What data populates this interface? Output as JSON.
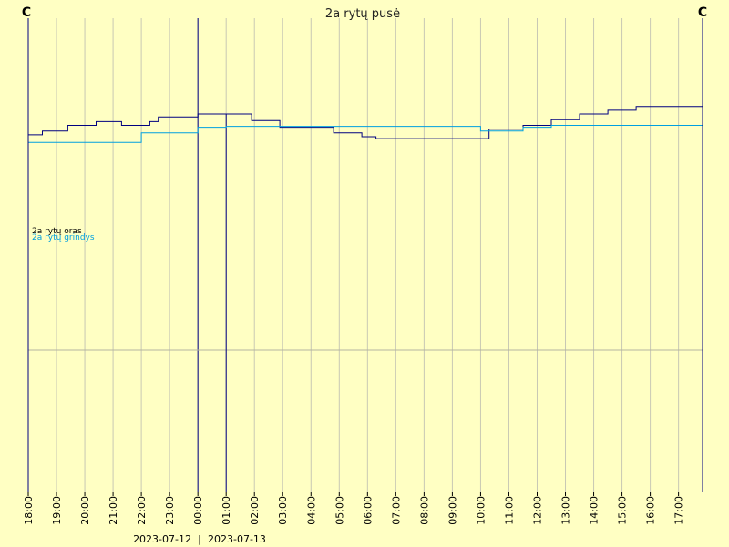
{
  "chart_data": {
    "type": "line",
    "title": "2a rytų pusė",
    "unit_left": "C",
    "unit_right": "C",
    "date_left": "2023-07-12",
    "date_separator": "|",
    "date_right": "2023-07-13",
    "x_ticks": [
      "18:00",
      "19:00",
      "20:00",
      "21:00",
      "22:00",
      "23:00",
      "00:00",
      "01:00",
      "02:00",
      "03:00",
      "04:00",
      "05:00",
      "06:00",
      "07:00",
      "08:00",
      "09:00",
      "10:00",
      "11:00",
      "12:00",
      "13:00",
      "14:00",
      "15:00",
      "16:00",
      "17:00"
    ],
    "x_range_hours": [
      0,
      23.85
    ],
    "ylim": [
      -15,
      35
    ],
    "reference_line_y": 0,
    "grid": true,
    "legend_position": "left",
    "series": [
      {
        "name": "2a rytų oras",
        "color": "#000080",
        "points": [
          [
            0.0,
            22.7
          ],
          [
            0.5,
            22.7
          ],
          [
            0.5,
            23.1
          ],
          [
            1.4,
            23.1
          ],
          [
            1.4,
            23.7
          ],
          [
            2.4,
            23.7
          ],
          [
            2.4,
            24.1
          ],
          [
            3.3,
            24.1
          ],
          [
            3.3,
            23.7
          ],
          [
            4.3,
            23.7
          ],
          [
            4.3,
            24.1
          ],
          [
            4.6,
            24.1
          ],
          [
            4.6,
            24.6
          ],
          [
            6.0,
            24.6
          ],
          [
            6.0,
            24.9
          ],
          [
            7.0,
            24.9
          ],
          [
            7.0,
            -15.0
          ],
          [
            7.0,
            24.9
          ],
          [
            7.9,
            24.9
          ],
          [
            7.9,
            24.2
          ],
          [
            8.9,
            24.2
          ],
          [
            8.9,
            23.5
          ],
          [
            10.8,
            23.5
          ],
          [
            10.8,
            22.9
          ],
          [
            11.8,
            22.9
          ],
          [
            11.8,
            22.5
          ],
          [
            12.3,
            22.5
          ],
          [
            12.3,
            22.3
          ],
          [
            16.3,
            22.3
          ],
          [
            16.3,
            23.3
          ],
          [
            17.5,
            23.3
          ],
          [
            17.5,
            23.7
          ],
          [
            18.5,
            23.7
          ],
          [
            18.5,
            24.3
          ],
          [
            19.5,
            24.3
          ],
          [
            19.5,
            24.9
          ],
          [
            20.5,
            24.9
          ],
          [
            20.5,
            25.3
          ],
          [
            21.5,
            25.3
          ],
          [
            21.5,
            25.7
          ],
          [
            23.85,
            25.7
          ]
        ]
      },
      {
        "name": "2a rytų grindys",
        "color": "#00a0e0",
        "points": [
          [
            0.0,
            21.9
          ],
          [
            4.0,
            21.9
          ],
          [
            4.0,
            22.9
          ],
          [
            6.0,
            22.9
          ],
          [
            6.0,
            23.5
          ],
          [
            7.0,
            23.5
          ],
          [
            7.0,
            23.6
          ],
          [
            16.0,
            23.6
          ],
          [
            16.0,
            23.1
          ],
          [
            17.5,
            23.1
          ],
          [
            17.5,
            23.5
          ],
          [
            18.5,
            23.5
          ],
          [
            18.5,
            23.7
          ],
          [
            23.85,
            23.7
          ]
        ]
      }
    ]
  }
}
